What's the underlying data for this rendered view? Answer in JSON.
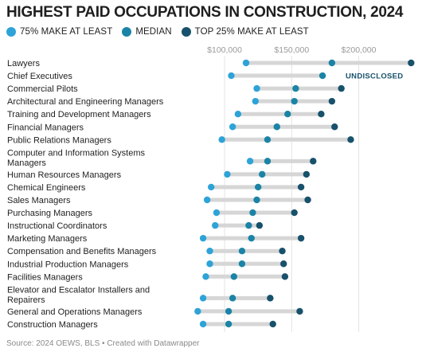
{
  "title": "HIGHEST PAID OCCUPATIONS IN CONSTRUCTION, 2024",
  "source": "Source: 2024 OEWS, BLS • Created with Datawrapper",
  "legend": [
    {
      "label": "75% MAKE AT LEAST",
      "color": "#2ea3d8"
    },
    {
      "label": "MEDIAN",
      "color": "#1b84a6"
    },
    {
      "label": "TOP 25% MAKE AT LEAST",
      "color": "#17516b"
    }
  ],
  "chart_data": {
    "type": "dot-range",
    "x_ticks": [
      {
        "value": 100000,
        "label": "$100,000"
      },
      {
        "value": 150000,
        "label": "$150,000"
      },
      {
        "value": 200000,
        "label": "$200,000"
      }
    ],
    "xlim": [
      62000,
      240000
    ],
    "series_names": [
      "75% MAKE AT LEAST",
      "MEDIAN",
      "TOP 25% MAKE AT LEAST"
    ],
    "annotation": "UNDISCLOSED",
    "rows": [
      {
        "label": [
          "Lawyers"
        ],
        "p25": 116000,
        "median": 180000,
        "p75": 239000
      },
      {
        "label": [
          "Chief Executives"
        ],
        "p25": 105000,
        "median": 173000,
        "p75": null,
        "note": "UNDISCLOSED"
      },
      {
        "label": [
          "Commercial Pilots"
        ],
        "p25": 124000,
        "median": 153000,
        "p75": 187000
      },
      {
        "label": [
          "Architectural and Engineering Managers"
        ],
        "p25": 123000,
        "median": 152000,
        "p75": 180000
      },
      {
        "label": [
          "Training and Development Managers"
        ],
        "p25": 110000,
        "median": 147000,
        "p75": 172000
      },
      {
        "label": [
          "Financial Managers"
        ],
        "p25": 106000,
        "median": 139000,
        "p75": 182000
      },
      {
        "label": [
          "Public Relations Managers"
        ],
        "p25": 98000,
        "median": 132000,
        "p75": 194000
      },
      {
        "label": [
          "Computer and Information Systems",
          "Managers"
        ],
        "p25": 119000,
        "median": 132000,
        "p75": 166000
      },
      {
        "label": [
          "Human Resources Managers"
        ],
        "p25": 102000,
        "median": 128000,
        "p75": 161000
      },
      {
        "label": [
          "Chemical Engineers"
        ],
        "p25": 90000,
        "median": 125000,
        "p75": 157000
      },
      {
        "label": [
          "Sales Managers"
        ],
        "p25": 87000,
        "median": 124000,
        "p75": 162000
      },
      {
        "label": [
          "Purchasing Managers"
        ],
        "p25": 94000,
        "median": 121000,
        "p75": 152000
      },
      {
        "label": [
          "Instructional Coordinators"
        ],
        "p25": 93000,
        "median": 118000,
        "p75": 126000
      },
      {
        "label": [
          "Marketing Managers"
        ],
        "p25": 84000,
        "median": 120000,
        "p75": 157000
      },
      {
        "label": [
          "Compensation and Benefits Managers"
        ],
        "p25": 89000,
        "median": 113000,
        "p75": 143000
      },
      {
        "label": [
          "Industrial Production Managers"
        ],
        "p25": 89000,
        "median": 113000,
        "p75": 144000
      },
      {
        "label": [
          "Facilities Managers"
        ],
        "p25": 86000,
        "median": 107000,
        "p75": 145000
      },
      {
        "label": [
          "Elevator and Escalator Installers and",
          "Repairers"
        ],
        "p25": 84000,
        "median": 106000,
        "p75": 134000
      },
      {
        "label": [
          "General and Operations Managers"
        ],
        "p25": 80000,
        "median": 103000,
        "p75": 156000
      },
      {
        "label": [
          "Construction Managers"
        ],
        "p25": 84000,
        "median": 103000,
        "p75": 136000
      }
    ]
  }
}
